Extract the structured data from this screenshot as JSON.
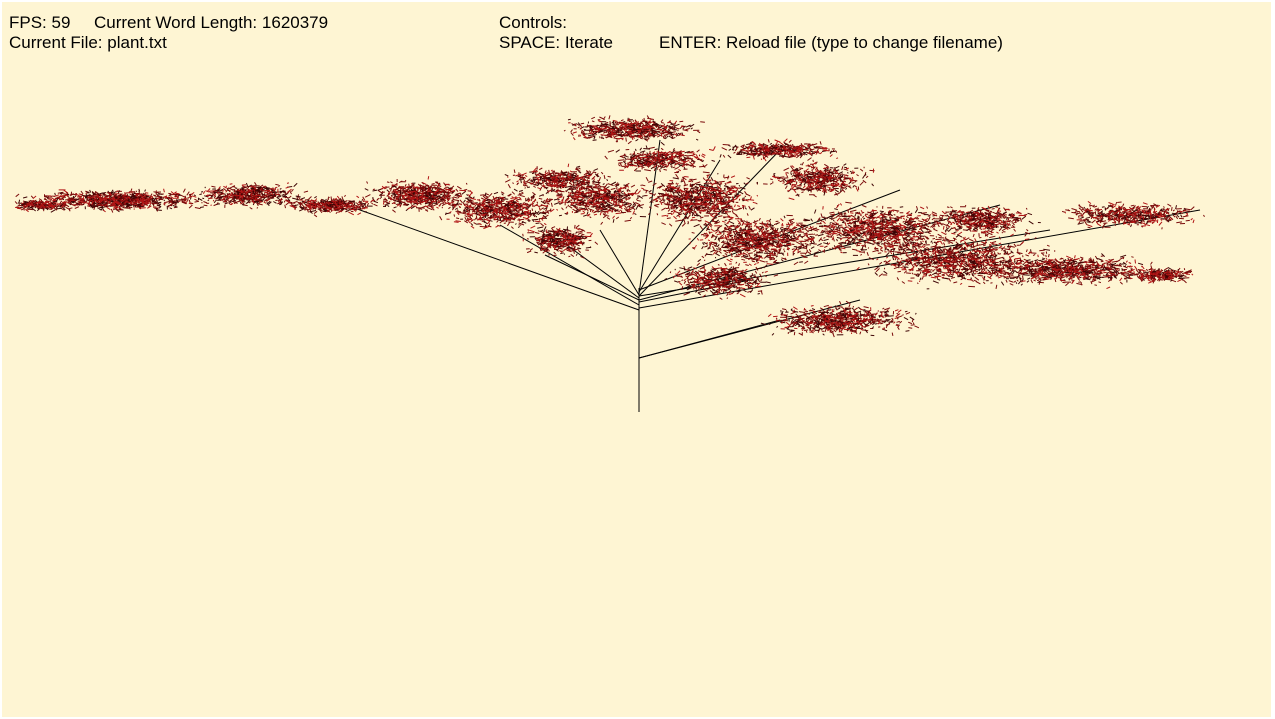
{
  "hud": {
    "fps_label": "FPS:",
    "fps_value": "59",
    "word_length_label": "Current Word Length:",
    "word_length_value": "1620379",
    "file_label": "Current File:",
    "file_value": "plant.txt"
  },
  "controls": {
    "title": "Controls:",
    "space": "SPACE: Iterate",
    "enter": "ENTER: Reload file (type to change filename)"
  },
  "scene": {
    "background_color": "#fef5d3",
    "stem_color": "#000000",
    "leaf_color": "#7a0a0a",
    "leaf_dark_color": "#3f0505",
    "leaf_bright_color": "#b01414",
    "icon": "lsystem-plant-render"
  }
}
